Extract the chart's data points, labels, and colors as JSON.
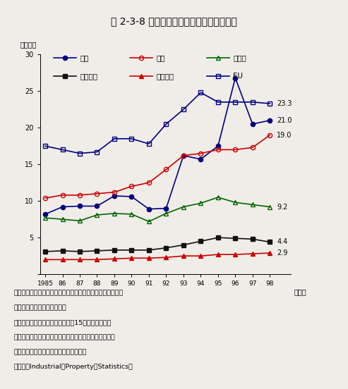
{
  "title": "第 2-3-8 図　主要国の特許登録件数の推移",
  "ylabel": "（万件）",
  "xlabel": "（年）",
  "years": [
    1985,
    1986,
    1987,
    1988,
    1989,
    1990,
    1991,
    1992,
    1993,
    1994,
    1995,
    1996,
    1997,
    1998
  ],
  "series_order": [
    "日本",
    "米国",
    "ドイツ",
    "フランス",
    "イギリス",
    "EU"
  ],
  "series": {
    "日本": {
      "values": [
        8.2,
        9.2,
        9.3,
        9.3,
        10.7,
        10.6,
        8.9,
        9.0,
        16.2,
        15.7,
        17.5,
        26.8,
        20.5,
        21.0
      ],
      "color": "#000080",
      "marker": "o",
      "fillstyle": "full",
      "end_label": "21.0"
    },
    "米国": {
      "values": [
        10.4,
        10.8,
        10.8,
        11.0,
        11.2,
        12.0,
        12.5,
        14.3,
        16.2,
        16.5,
        17.0,
        17.0,
        17.3,
        19.0
      ],
      "color": "#cc0000",
      "marker": "o",
      "fillstyle": "none",
      "end_label": "19.0"
    },
    "ドイツ": {
      "values": [
        7.7,
        7.5,
        7.3,
        8.1,
        8.3,
        8.2,
        7.2,
        8.3,
        9.2,
        9.7,
        10.5,
        9.8,
        9.5,
        9.2
      ],
      "color": "#006600",
      "marker": "^",
      "fillstyle": "none",
      "end_label": "9.2"
    },
    "フランス": {
      "values": [
        3.1,
        3.2,
        3.1,
        3.2,
        3.3,
        3.3,
        3.3,
        3.6,
        4.0,
        4.5,
        5.0,
        4.9,
        4.8,
        4.4
      ],
      "color": "#111111",
      "marker": "s",
      "fillstyle": "full",
      "end_label": "4.4"
    },
    "イギリス": {
      "values": [
        2.0,
        2.0,
        2.0,
        2.0,
        2.1,
        2.2,
        2.2,
        2.3,
        2.5,
        2.5,
        2.7,
        2.7,
        2.8,
        2.9
      ],
      "color": "#cc0000",
      "marker": "^",
      "fillstyle": "full",
      "end_label": "2.9"
    },
    "EU": {
      "values": [
        17.5,
        17.0,
        16.5,
        16.7,
        18.5,
        18.5,
        17.8,
        20.5,
        22.5,
        24.8,
        23.5,
        23.5,
        23.5,
        23.3
      ],
      "color": "#000080",
      "marker": "s",
      "fillstyle": "none",
      "end_label": "23.3"
    }
  },
  "ylim": [
    0,
    30
  ],
  "yticks": [
    0,
    5,
    10,
    15,
    20,
    25,
    30
  ],
  "background_color": "#f0ede8",
  "note_lines": [
    "注）１．特許権利者の国籍別に対自国及び対外国に登録がな",
    "　　　された件数の合計値。",
    "　　２．ＥＵの数値は現在の加盟15か国の合計値。",
    "資料：特許庁「特許庁年報」、「特許行政年次報告書」",
    "　　　世界知的所有権機関（ＷＩＰＯ）",
    "　　　「Industrial　Property　Statistics」"
  ],
  "note_fontsize": 6.8,
  "title_fontsize": 10.0,
  "axis_fontsize": 7.5,
  "legend_fontsize": 7.5
}
